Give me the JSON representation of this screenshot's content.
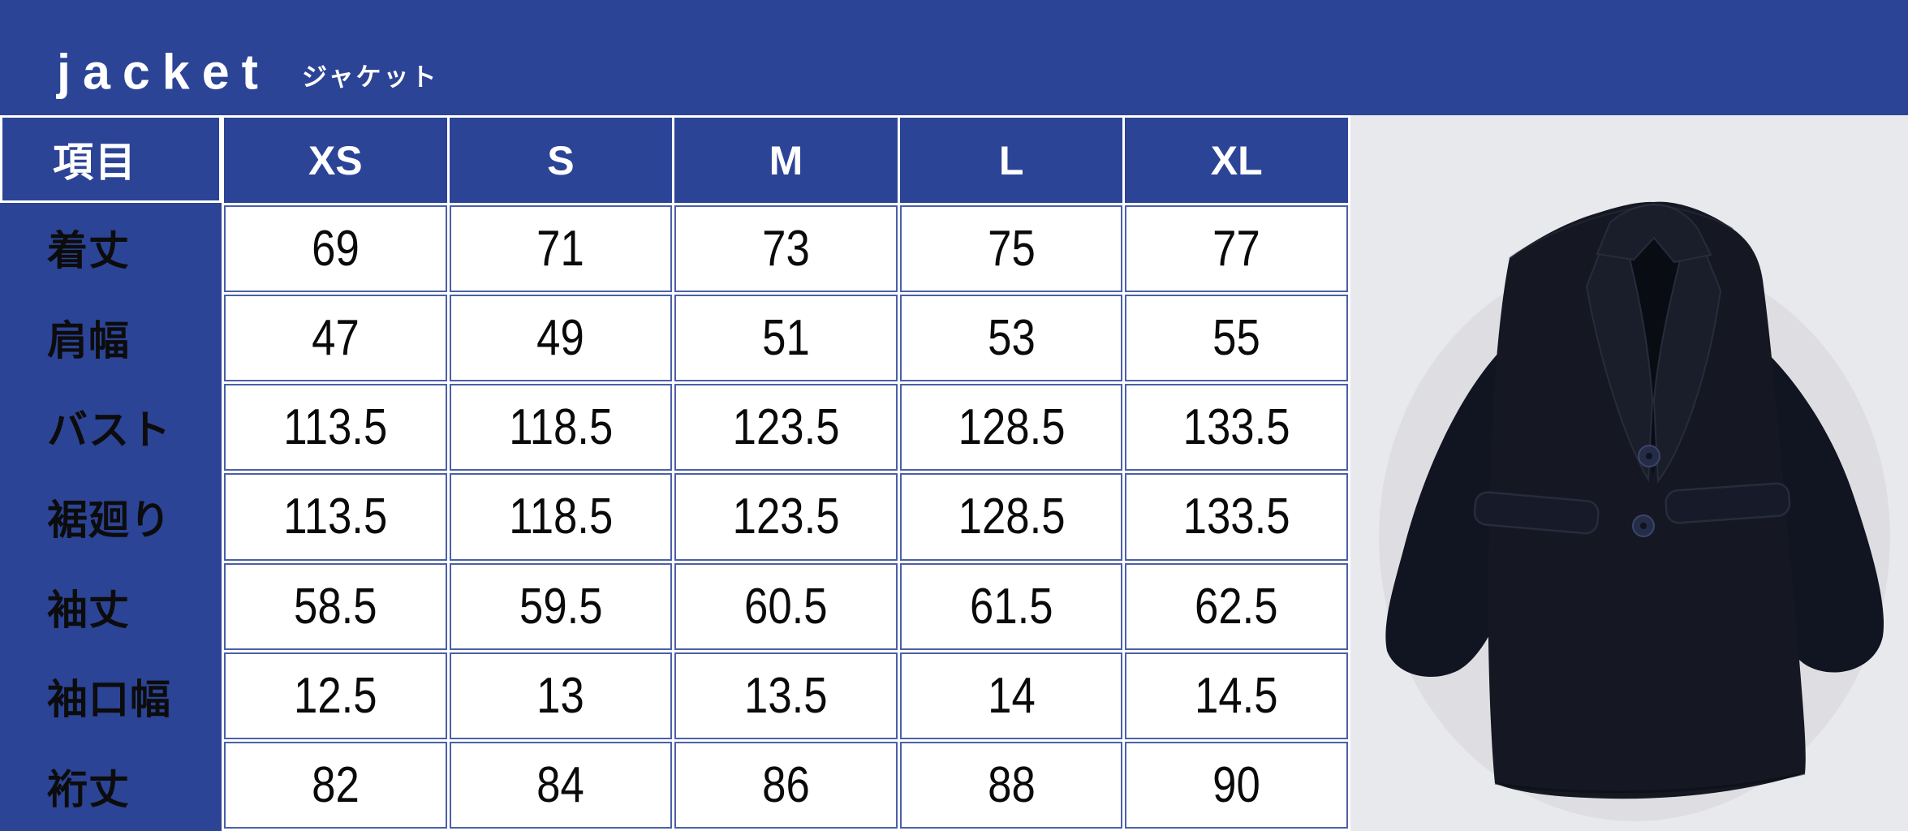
{
  "header": {
    "title": "jacket",
    "subtitle": "ジャケット"
  },
  "table": {
    "corner_label": "項目",
    "size_columns": [
      "XS",
      "S",
      "M",
      "L",
      "XL"
    ],
    "rows": [
      {
        "label": "着丈",
        "values": [
          "69",
          "71",
          "73",
          "75",
          "77"
        ]
      },
      {
        "label": "肩幅",
        "values": [
          "47",
          "49",
          "51",
          "53",
          "55"
        ]
      },
      {
        "label": "バスト",
        "values": [
          "113.5",
          "118.5",
          "123.5",
          "128.5",
          "133.5"
        ]
      },
      {
        "label": "裾廻り",
        "values": [
          "113.5",
          "118.5",
          "123.5",
          "128.5",
          "133.5"
        ]
      },
      {
        "label": "袖丈",
        "values": [
          "58.5",
          "59.5",
          "60.5",
          "61.5",
          "62.5"
        ]
      },
      {
        "label": "袖口幅",
        "values": [
          "12.5",
          "13",
          "13.5",
          "14",
          "14.5"
        ]
      },
      {
        "label": "裄丈",
        "values": [
          "82",
          "84",
          "86",
          "88",
          "90"
        ]
      }
    ]
  },
  "photo": {
    "subject": "dark navy relaxed blazer flat-lay"
  },
  "colors": {
    "primary_blue": "#2c4496",
    "cell_border_blue": "#4c60a8",
    "photo_background": "#e8e9ed",
    "jacket_dark": "#14161f",
    "text_black": "#0a0a0a",
    "white": "#ffffff"
  },
  "chart_data": {
    "type": "table",
    "title": "jacket ジャケット size chart",
    "columns": [
      "項目",
      "XS",
      "S",
      "M",
      "L",
      "XL"
    ],
    "rows": [
      [
        "着丈",
        69,
        71,
        73,
        75,
        77
      ],
      [
        "肩幅",
        47,
        49,
        51,
        53,
        55
      ],
      [
        "バスト",
        113.5,
        118.5,
        123.5,
        128.5,
        133.5
      ],
      [
        "裾廻り",
        113.5,
        118.5,
        123.5,
        128.5,
        133.5
      ],
      [
        "袖丈",
        58.5,
        59.5,
        60.5,
        61.5,
        62.5
      ],
      [
        "袖口幅",
        12.5,
        13,
        13.5,
        14,
        14.5
      ],
      [
        "裄丈",
        82,
        84,
        86,
        88,
        90
      ]
    ],
    "legend_position": "none",
    "grid": true
  }
}
